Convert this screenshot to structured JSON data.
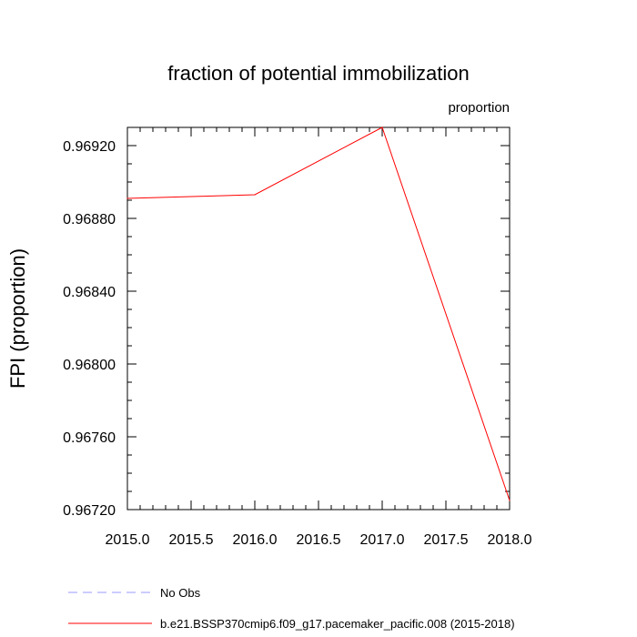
{
  "chart_data": {
    "type": "line",
    "title": "fraction of potential immobilization",
    "units_label": "proportion",
    "ylabel": "FPI  (proportion)",
    "xlabel": "",
    "xlim": [
      2015.0,
      2018.0
    ],
    "ylim": [
      0.9672,
      0.9693
    ],
    "x_ticks": [
      2015.0,
      2015.5,
      2016.0,
      2016.5,
      2017.0,
      2017.5,
      2018.0
    ],
    "x_tick_labels": [
      "2015.0",
      "2015.5",
      "2016.0",
      "2016.5",
      "2017.0",
      "2017.5",
      "2018.0"
    ],
    "y_ticks": [
      0.9672,
      0.9676,
      0.968,
      0.9684,
      0.9688,
      0.9692
    ],
    "y_tick_labels": [
      "0.96720",
      "0.96760",
      "0.96800",
      "0.96840",
      "0.96880",
      "0.96920"
    ],
    "grid": false,
    "series": [
      {
        "name": "b.e21.BSSP370cmip6.f09_g17.pacemaker_pacific.008 (2015-2018)",
        "color": "#ff0000",
        "dash": "solid",
        "x": [
          2015,
          2016,
          2017,
          2018
        ],
        "y": [
          0.96891,
          0.96893,
          0.9693,
          0.96725
        ]
      }
    ],
    "legend": {
      "placement": "bottom",
      "entries": [
        {
          "label": "No Obs",
          "color": "#9999ff",
          "dash": "dashed"
        },
        {
          "label": "b.e21.BSSP370cmip6.f09_g17.pacemaker_pacific.008 (2015-2018)",
          "color": "#ff0000",
          "dash": "solid"
        }
      ]
    }
  }
}
